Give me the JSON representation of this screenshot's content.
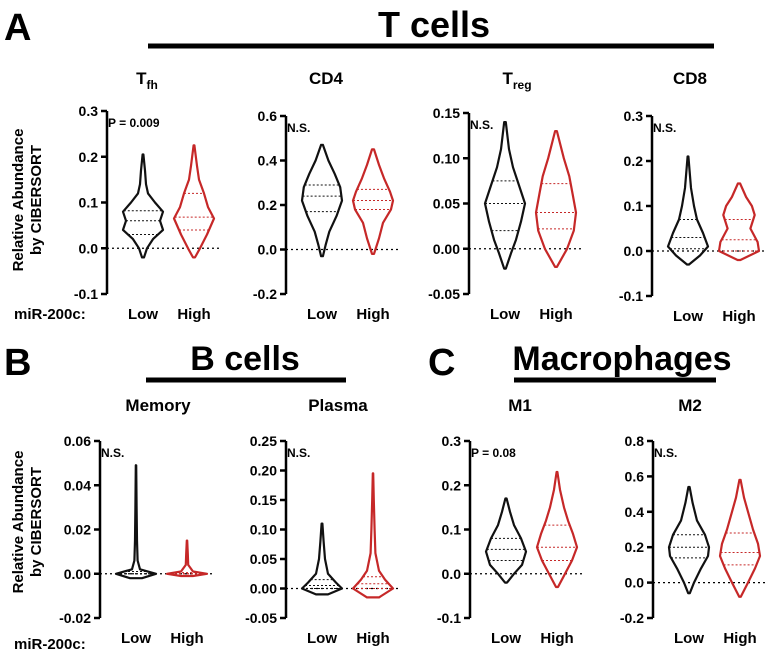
{
  "panels": {
    "A": {
      "letter": "A",
      "group_title": "T cells"
    },
    "B": {
      "letter": "B",
      "group_title": "B cells"
    },
    "C": {
      "letter": "C",
      "group_title": "Macrophages"
    }
  },
  "y_axis_label": {
    "line1": "Relative Abundance",
    "line2": "by CIBERSORT"
  },
  "row_label": "miR-200c:",
  "series_colors": {
    "Low": "#111111",
    "High": "#c62828"
  },
  "chart_data": [
    {
      "id": "tfh",
      "type": "violin",
      "title": "T",
      "subscript": "fh",
      "annotation": "P = 0.009",
      "categories": [
        "Low",
        "High"
      ],
      "ylim": [
        -0.1,
        0.3
      ],
      "yticks": [
        -0.1,
        0.0,
        0.1,
        0.2,
        0.3
      ],
      "ytick_labels": [
        "-0.1",
        "0.0",
        "0.1",
        "0.2",
        "0.3"
      ],
      "series": [
        {
          "name": "Low",
          "min": -0.02,
          "max": 0.205,
          "q1": 0.03,
          "median": 0.06,
          "q3": 0.082,
          "density": [
            [
              -0.02,
              0.005
            ],
            [
              0.0,
              0.02
            ],
            [
              0.02,
              0.05
            ],
            [
              0.04,
              0.1
            ],
            [
              0.06,
              0.085
            ],
            [
              0.08,
              0.1
            ],
            [
              0.1,
              0.06
            ],
            [
              0.12,
              0.025
            ],
            [
              0.14,
              0.015
            ],
            [
              0.17,
              0.01
            ],
            [
              0.205,
              0.002
            ]
          ]
        },
        {
          "name": "High",
          "min": -0.02,
          "max": 0.225,
          "q1": 0.04,
          "median": 0.068,
          "q3": 0.12,
          "density": [
            [
              -0.02,
              0.005
            ],
            [
              0.0,
              0.03
            ],
            [
              0.03,
              0.065
            ],
            [
              0.065,
              0.1
            ],
            [
              0.09,
              0.07
            ],
            [
              0.12,
              0.05
            ],
            [
              0.15,
              0.025
            ],
            [
              0.18,
              0.015
            ],
            [
              0.225,
              0.002
            ]
          ]
        }
      ]
    },
    {
      "id": "cd4",
      "type": "violin",
      "title": "CD4",
      "subscript": "",
      "annotation": "N.S.",
      "categories": [
        "Low",
        "High"
      ],
      "ylim": [
        -0.2,
        0.6
      ],
      "yticks": [
        -0.2,
        0.0,
        0.2,
        0.4,
        0.6
      ],
      "ytick_labels": [
        "-0.2",
        "0.0",
        "0.2",
        "0.4",
        "0.6"
      ],
      "series": [
        {
          "name": "Low",
          "min": -0.03,
          "max": 0.47,
          "q1": 0.17,
          "median": 0.24,
          "q3": 0.29,
          "density": [
            [
              -0.03,
              0.005
            ],
            [
              0.02,
              0.02
            ],
            [
              0.08,
              0.04
            ],
            [
              0.15,
              0.08
            ],
            [
              0.22,
              0.11
            ],
            [
              0.28,
              0.1
            ],
            [
              0.34,
              0.07
            ],
            [
              0.4,
              0.035
            ],
            [
              0.47,
              0.005
            ]
          ]
        },
        {
          "name": "High",
          "min": -0.02,
          "max": 0.45,
          "q1": 0.18,
          "median": 0.22,
          "q3": 0.27,
          "density": [
            [
              -0.02,
              0.005
            ],
            [
              0.05,
              0.03
            ],
            [
              0.12,
              0.05
            ],
            [
              0.18,
              0.09
            ],
            [
              0.22,
              0.1
            ],
            [
              0.26,
              0.085
            ],
            [
              0.32,
              0.055
            ],
            [
              0.38,
              0.03
            ],
            [
              0.45,
              0.005
            ]
          ]
        }
      ]
    },
    {
      "id": "treg",
      "type": "violin",
      "title": "T",
      "subscript": "reg",
      "annotation": "N.S.",
      "categories": [
        "Low",
        "High"
      ],
      "ylim": [
        -0.05,
        0.15
      ],
      "yticks": [
        -0.05,
        0.0,
        0.05,
        0.1,
        0.15
      ],
      "ytick_labels": [
        "-0.05",
        "0.00",
        "0.05",
        "0.10",
        "0.15"
      ],
      "series": [
        {
          "name": "Low",
          "min": -0.022,
          "max": 0.14,
          "q1": 0.02,
          "median": 0.05,
          "q3": 0.075,
          "density": [
            [
              -0.022,
              0.004
            ],
            [
              -0.005,
              0.03
            ],
            [
              0.01,
              0.055
            ],
            [
              0.03,
              0.08
            ],
            [
              0.05,
              0.1
            ],
            [
              0.07,
              0.07
            ],
            [
              0.09,
              0.04
            ],
            [
              0.11,
              0.02
            ],
            [
              0.14,
              0.004
            ]
          ]
        },
        {
          "name": "High",
          "min": -0.02,
          "max": 0.13,
          "q1": 0.022,
          "median": 0.04,
          "q3": 0.072,
          "density": [
            [
              -0.02,
              0.004
            ],
            [
              0.0,
              0.05
            ],
            [
              0.02,
              0.08
            ],
            [
              0.04,
              0.09
            ],
            [
              0.06,
              0.075
            ],
            [
              0.08,
              0.06
            ],
            [
              0.1,
              0.035
            ],
            [
              0.13,
              0.004
            ]
          ]
        }
      ]
    },
    {
      "id": "cd8",
      "type": "violin",
      "title": "CD8",
      "subscript": "",
      "annotation": "N.S.",
      "categories": [
        "Low",
        "High"
      ],
      "ylim": [
        -0.1,
        0.3
      ],
      "yticks": [
        -0.1,
        0.0,
        0.1,
        0.2,
        0.3
      ],
      "ytick_labels": [
        "-0.1",
        "0.0",
        "0.1",
        "0.2",
        "0.3"
      ],
      "series": [
        {
          "name": "Low",
          "min": -0.03,
          "max": 0.21,
          "q1": 0.005,
          "median": 0.03,
          "q3": 0.07,
          "density": [
            [
              -0.03,
              0.005
            ],
            [
              -0.01,
              0.06
            ],
            [
              0.01,
              0.1
            ],
            [
              0.04,
              0.075
            ],
            [
              0.07,
              0.045
            ],
            [
              0.1,
              0.03
            ],
            [
              0.14,
              0.015
            ],
            [
              0.21,
              0.002
            ]
          ]
        },
        {
          "name": "High",
          "min": -0.02,
          "max": 0.15,
          "q1": 0.0,
          "median": 0.025,
          "q3": 0.07,
          "density": [
            [
              -0.02,
              0.005
            ],
            [
              0.0,
              0.07
            ],
            [
              0.02,
              0.065
            ],
            [
              0.05,
              0.04
            ],
            [
              0.08,
              0.055
            ],
            [
              0.1,
              0.045
            ],
            [
              0.12,
              0.025
            ],
            [
              0.15,
              0.004
            ]
          ]
        }
      ]
    },
    {
      "id": "memory",
      "type": "violin",
      "title": "Memory",
      "subscript": "",
      "annotation": "N.S.",
      "categories": [
        "Low",
        "High"
      ],
      "ylim": [
        -0.02,
        0.06
      ],
      "yticks": [
        -0.02,
        0.0,
        0.02,
        0.04,
        0.06
      ],
      "ytick_labels": [
        "-0.02",
        "0.00",
        "0.02",
        "0.04",
        "0.06"
      ],
      "series": [
        {
          "name": "Low",
          "min": -0.002,
          "max": 0.049,
          "q1": 0.0,
          "median": 0.0,
          "q3": 0.001,
          "density": [
            [
              -0.002,
              0.03
            ],
            [
              0.0,
              0.1
            ],
            [
              0.002,
              0.02
            ],
            [
              0.006,
              0.008
            ],
            [
              0.015,
              0.005
            ],
            [
              0.03,
              0.003
            ],
            [
              0.049,
              0.001
            ]
          ]
        },
        {
          "name": "High",
          "min": -0.001,
          "max": 0.015,
          "q1": 0.0,
          "median": 0.0,
          "q3": 0.0005,
          "density": [
            [
              -0.001,
              0.03
            ],
            [
              0.0,
              0.1
            ],
            [
              0.001,
              0.03
            ],
            [
              0.004,
              0.006
            ],
            [
              0.009,
              0.004
            ],
            [
              0.015,
              0.001
            ]
          ]
        }
      ]
    },
    {
      "id": "plasma",
      "type": "violin",
      "title": "Plasma",
      "subscript": "",
      "annotation": "N.S.",
      "categories": [
        "Low",
        "High"
      ],
      "ylim": [
        -0.05,
        0.25
      ],
      "yticks": [
        -0.05,
        0.0,
        0.05,
        0.1,
        0.15,
        0.2,
        0.25
      ],
      "ytick_labels": [
        "-0.05",
        "0.00",
        "0.05",
        "0.10",
        "0.15",
        "0.20",
        "0.25"
      ],
      "series": [
        {
          "name": "Low",
          "min": -0.01,
          "max": 0.11,
          "q1": 0.0,
          "median": 0.005,
          "q3": 0.015,
          "density": [
            [
              -0.01,
              0.03
            ],
            [
              0.0,
              0.1
            ],
            [
              0.01,
              0.07
            ],
            [
              0.025,
              0.03
            ],
            [
              0.05,
              0.015
            ],
            [
              0.08,
              0.008
            ],
            [
              0.11,
              0.002
            ]
          ]
        },
        {
          "name": "High",
          "min": -0.015,
          "max": 0.195,
          "q1": 0.0,
          "median": 0.008,
          "q3": 0.02,
          "density": [
            [
              -0.015,
              0.03
            ],
            [
              0.0,
              0.1
            ],
            [
              0.015,
              0.06
            ],
            [
              0.03,
              0.03
            ],
            [
              0.06,
              0.012
            ],
            [
              0.1,
              0.008
            ],
            [
              0.15,
              0.004
            ],
            [
              0.195,
              0.001
            ]
          ]
        }
      ]
    },
    {
      "id": "m1",
      "type": "violin",
      "title": "M1",
      "subscript": "",
      "annotation": "P = 0.08",
      "categories": [
        "Low",
        "High"
      ],
      "ylim": [
        -0.1,
        0.3
      ],
      "yticks": [
        -0.1,
        0.0,
        0.1,
        0.2,
        0.3
      ],
      "ytick_labels": [
        "-0.1",
        "0.0",
        "0.1",
        "0.2",
        "0.3"
      ],
      "series": [
        {
          "name": "Low",
          "min": -0.02,
          "max": 0.17,
          "q1": 0.03,
          "median": 0.055,
          "q3": 0.08,
          "density": [
            [
              -0.02,
              0.005
            ],
            [
              0.0,
              0.04
            ],
            [
              0.02,
              0.08
            ],
            [
              0.05,
              0.1
            ],
            [
              0.08,
              0.075
            ],
            [
              0.11,
              0.04
            ],
            [
              0.14,
              0.02
            ],
            [
              0.17,
              0.003
            ]
          ]
        },
        {
          "name": "High",
          "min": -0.03,
          "max": 0.23,
          "q1": 0.03,
          "median": 0.06,
          "q3": 0.11,
          "density": [
            [
              -0.03,
              0.005
            ],
            [
              0.0,
              0.04
            ],
            [
              0.03,
              0.075
            ],
            [
              0.06,
              0.1
            ],
            [
              0.09,
              0.08
            ],
            [
              0.12,
              0.055
            ],
            [
              0.15,
              0.035
            ],
            [
              0.19,
              0.015
            ],
            [
              0.23,
              0.002
            ]
          ]
        }
      ]
    },
    {
      "id": "m2",
      "type": "violin",
      "title": "M2",
      "subscript": "",
      "annotation": "N.S.",
      "categories": [
        "Low",
        "High"
      ],
      "ylim": [
        -0.2,
        0.8
      ],
      "yticks": [
        -0.2,
        0.0,
        0.2,
        0.4,
        0.6,
        0.8
      ],
      "ytick_labels": [
        "-0.2",
        "0.0",
        "0.2",
        "0.4",
        "0.6",
        "0.8"
      ],
      "series": [
        {
          "name": "Low",
          "min": -0.06,
          "max": 0.54,
          "q1": 0.14,
          "median": 0.2,
          "q3": 0.27,
          "density": [
            [
              -0.06,
              0.004
            ],
            [
              0.0,
              0.025
            ],
            [
              0.08,
              0.06
            ],
            [
              0.15,
              0.095
            ],
            [
              0.2,
              0.1
            ],
            [
              0.27,
              0.08
            ],
            [
              0.35,
              0.04
            ],
            [
              0.45,
              0.018
            ],
            [
              0.54,
              0.003
            ]
          ]
        },
        {
          "name": "High",
          "min": -0.08,
          "max": 0.58,
          "q1": 0.1,
          "median": 0.17,
          "q3": 0.28,
          "density": [
            [
              -0.08,
              0.004
            ],
            [
              0.0,
              0.04
            ],
            [
              0.08,
              0.075
            ],
            [
              0.15,
              0.1
            ],
            [
              0.22,
              0.09
            ],
            [
              0.3,
              0.065
            ],
            [
              0.4,
              0.04
            ],
            [
              0.48,
              0.02
            ],
            [
              0.58,
              0.003
            ]
          ]
        }
      ]
    }
  ]
}
